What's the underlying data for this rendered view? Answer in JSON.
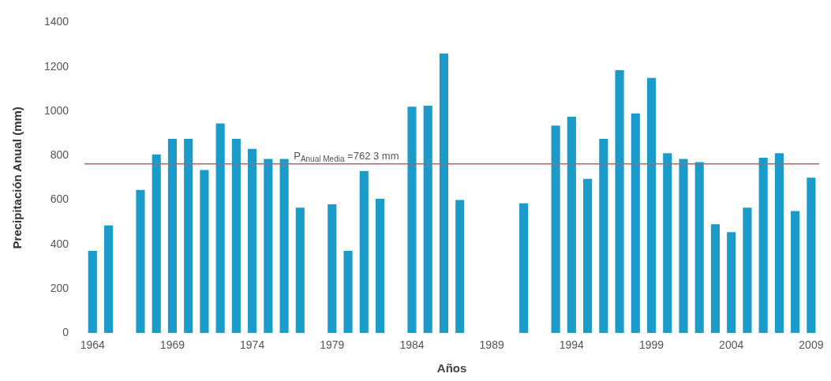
{
  "chart_data": {
    "type": "bar",
    "xlabel": "Años",
    "ylabel": "Precipitación Anual (mm)",
    "categories": [
      "1964",
      null,
      null,
      null,
      null,
      "1969",
      null,
      null,
      null,
      null,
      "1974",
      null,
      null,
      null,
      null,
      "1979",
      null,
      null,
      null,
      null,
      "1984",
      null,
      null,
      null,
      null,
      "1989",
      null,
      null,
      null,
      null,
      "1994",
      null,
      null,
      null,
      null,
      "1999",
      null,
      null,
      null,
      null,
      "2004",
      null,
      null,
      null,
      null,
      "2009"
    ],
    "values": [
      370,
      485,
      null,
      645,
      805,
      875,
      875,
      735,
      945,
      875,
      830,
      785,
      785,
      565,
      null,
      580,
      370,
      730,
      605,
      null,
      1020,
      1025,
      1260,
      600,
      null,
      null,
      null,
      585,
      null,
      935,
      975,
      695,
      875,
      1185,
      990,
      1150,
      810,
      785,
      770,
      490,
      455,
      565,
      790,
      810,
      550,
      700
    ],
    "color": "#1a9bc9",
    "ylim": [
      0,
      1400
    ],
    "yticks": [
      0,
      200,
      400,
      600,
      800,
      1000,
      1200,
      1400
    ],
    "grid": false,
    "ref_lines": [
      {
        "axis": "y",
        "value": 762.3,
        "label": "P$_{Anual Media}$ =762 3 mm",
        "color": "#c0605a"
      }
    ]
  }
}
